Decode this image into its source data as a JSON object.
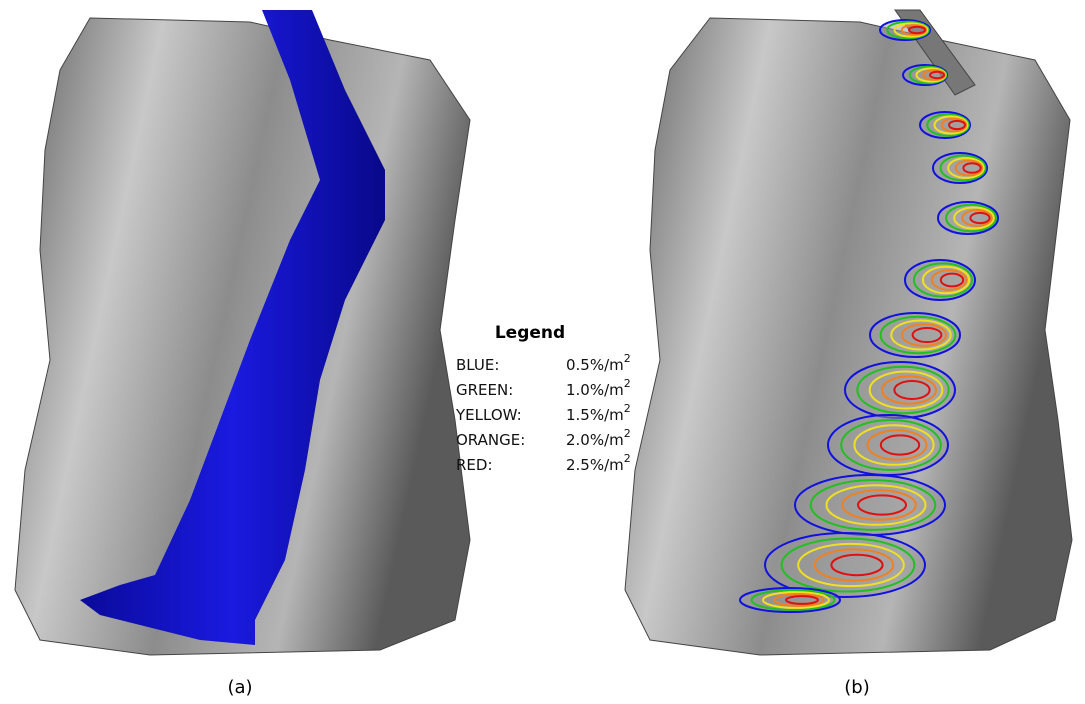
{
  "legend": {
    "title": "Legend",
    "entries": [
      {
        "name": "BLUE:",
        "value": "0.5%/m",
        "exponent": "2"
      },
      {
        "name": "GREEN:",
        "value": "1.0%/m",
        "exponent": "2"
      },
      {
        "name": "YELLOW:",
        "value": "1.5%/m",
        "exponent": "2"
      },
      {
        "name": "ORANGE:",
        "value": "2.0%/m",
        "exponent": "2"
      },
      {
        "name": "RED:",
        "value": "2.5%/m",
        "exponent": "2"
      }
    ]
  },
  "captions": [
    "(a)",
    "(b)"
  ]
}
